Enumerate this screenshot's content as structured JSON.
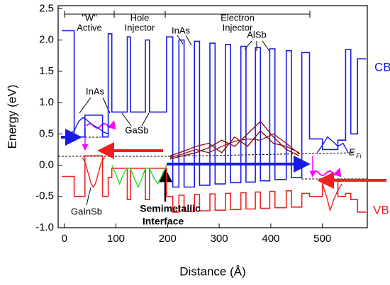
{
  "chart_data": {
    "type": "line",
    "xlabel": "Distance (Å)",
    "ylabel": "Energy (eV)",
    "xlim": [
      -12,
      587
    ],
    "ylim": [
      -1.0,
      2.55
    ],
    "xticks": [
      0,
      100,
      200,
      300,
      400,
      500
    ],
    "yticks": [
      {
        "value": -1,
        "label": "-1.0"
      },
      -0.5,
      {
        "value": 0,
        "label": "0.0"
      },
      0.5,
      {
        "value": 1,
        "label": "1.0"
      },
      1.5,
      {
        "value": 2,
        "label": "2.0"
      },
      2.5
    ],
    "annotations": [
      "\"W\"",
      "Active",
      "Hole",
      "Injector",
      "Electron",
      "Injector",
      "InAs",
      "AlSb",
      "InAs",
      "GaSb",
      "GaInSb",
      "Semimetallic",
      "Interface",
      "E",
      "Fi"
    ],
    "series": [
      {
        "name": "CB",
        "color": "#1a1ae6",
        "x": [
          -5,
          19,
          19,
          40,
          40,
          74,
          74,
          85,
          85,
          92,
          92,
          122,
          122,
          128,
          128,
          157,
          157,
          165,
          165,
          198,
          198,
          210,
          210,
          222,
          222,
          232,
          232,
          252,
          252,
          262,
          262,
          282,
          282,
          292,
          292,
          312,
          312,
          322,
          322,
          342,
          342,
          352,
          352,
          370,
          370,
          380,
          380,
          398,
          398,
          408,
          408,
          430,
          430,
          440,
          440,
          460,
          460,
          475,
          475,
          500,
          500,
          530,
          530,
          545,
          545,
          555,
          555,
          568,
          568,
          585
        ],
        "values": [
          2.15,
          2.15,
          0.45,
          0.45,
          0.8,
          0.8,
          0.45,
          0.45,
          2.1,
          2.1,
          0.85,
          0.85,
          2.05,
          2.05,
          0.85,
          0.85,
          2.0,
          2.0,
          0.85,
          0.85,
          2.05,
          2.05,
          -0.35,
          -0.35,
          2.0,
          2.0,
          -0.35,
          -0.35,
          1.98,
          1.98,
          -0.32,
          -0.32,
          1.95,
          1.95,
          -0.3,
          -0.3,
          1.93,
          1.93,
          -0.28,
          -0.28,
          1.9,
          1.9,
          -0.27,
          -0.27,
          1.88,
          1.88,
          -0.25,
          -0.25,
          1.86,
          1.86,
          -0.23,
          -0.23,
          1.83,
          1.83,
          -0.2,
          -0.2,
          1.8,
          1.8,
          0.42,
          0.42,
          0.25,
          0.25,
          0.4,
          0.4,
          1.85,
          1.85,
          0.5,
          0.5,
          1.7,
          1.7
        ]
      },
      {
        "name": "VB",
        "color": "#f02020",
        "x": [
          -5,
          19,
          19,
          40,
          40,
          74,
          74,
          85,
          85,
          92,
          92,
          122,
          122,
          128,
          128,
          157,
          157,
          165,
          165,
          198,
          198,
          210,
          210,
          222,
          222,
          232,
          232,
          252,
          252,
          262,
          262,
          282,
          282,
          292,
          292,
          312,
          312,
          322,
          322,
          342,
          342,
          352,
          352,
          370,
          370,
          380,
          380,
          398,
          398,
          408,
          408,
          430,
          430,
          440,
          440,
          460,
          460,
          475,
          475,
          500,
          500,
          530,
          530,
          545,
          545,
          555,
          555,
          568,
          568,
          585
        ],
        "values": [
          -0.18,
          -0.18,
          -0.5,
          -0.5,
          0.15,
          0.15,
          -0.5,
          -0.5,
          -0.2,
          -0.2,
          -0.05,
          -0.05,
          -0.55,
          -0.55,
          -0.05,
          -0.05,
          -0.55,
          -0.55,
          -0.05,
          -0.05,
          -0.5,
          -0.5,
          -0.75,
          -0.75,
          -0.48,
          -0.48,
          -0.74,
          -0.74,
          -0.47,
          -0.47,
          -0.73,
          -0.73,
          -0.46,
          -0.46,
          -0.72,
          -0.72,
          -0.45,
          -0.45,
          -0.71,
          -0.71,
          -0.44,
          -0.44,
          -0.7,
          -0.7,
          -0.43,
          -0.43,
          -0.69,
          -0.69,
          -0.42,
          -0.42,
          -0.68,
          -0.68,
          -0.41,
          -0.41,
          -0.67,
          -0.67,
          -0.45,
          -0.45,
          -0.5,
          -0.5,
          -0.25,
          -0.25,
          -0.5,
          -0.5,
          -0.45,
          -0.45,
          -0.55,
          -0.55,
          -0.75,
          -0.75
        ]
      },
      {
        "color": "#1a1ae6",
        "x": [
          10,
          19,
          28,
          36,
          44,
          52,
          60,
          68,
          76,
          85
        ],
        "values": [
          0.5,
          0.55,
          0.7,
          0.76,
          0.72,
          0.66,
          0.62,
          0.58,
          0.53,
          0.5
        ]
      },
      {
        "color": "#f02020",
        "x": [
          35,
          40,
          46,
          52,
          56,
          60,
          66,
          72,
          78
        ],
        "values": [
          0.12,
          0.05,
          -0.12,
          -0.3,
          -0.35,
          -0.3,
          -0.12,
          0.05,
          0.12
        ]
      },
      {
        "color": "#22dd22",
        "x": [
          92,
          100,
          107,
          114,
          122,
          128,
          136,
          143,
          150,
          157,
          165,
          173,
          181,
          190,
          198
        ],
        "values": [
          0.0,
          -0.15,
          -0.3,
          -0.15,
          -0.05,
          -0.05,
          -0.22,
          -0.35,
          -0.22,
          -0.05,
          -0.05,
          -0.2,
          -0.3,
          -0.15,
          0.0
        ]
      },
      {
        "color": "#8b1010",
        "x": [
          205,
          230,
          255,
          280,
          305,
          330,
          355,
          380,
          405,
          430,
          455
        ],
        "values": [
          0.15,
          0.22,
          0.3,
          0.35,
          0.2,
          0.45,
          0.3,
          0.55,
          0.35,
          0.3,
          0.2
        ]
      },
      {
        "color": "#8b1010",
        "x": [
          205,
          230,
          255,
          280,
          305,
          330,
          355,
          380,
          405,
          430,
          455
        ],
        "values": [
          0.1,
          0.15,
          0.2,
          0.28,
          0.4,
          0.3,
          0.5,
          0.7,
          0.45,
          0.25,
          0.15
        ]
      },
      {
        "color": "#a02020",
        "x": [
          205,
          230,
          255,
          280,
          305,
          330,
          355,
          380,
          405,
          430,
          455
        ],
        "values": [
          0.12,
          0.18,
          0.25,
          0.2,
          0.3,
          0.38,
          0.42,
          0.4,
          0.5,
          0.35,
          0.18
        ]
      },
      {
        "color": "#1a1ae6",
        "x": [
          490,
          500,
          510,
          520,
          530,
          540,
          550
        ],
        "values": [
          0.2,
          0.32,
          0.45,
          0.38,
          0.3,
          0.35,
          0.2
        ]
      },
      {
        "color": "#f02020",
        "x": [
          500,
          508,
          515,
          522,
          530,
          538
        ],
        "values": [
          -0.3,
          -0.5,
          -0.72,
          -0.55,
          -0.4,
          -0.3
        ]
      }
    ]
  }
}
